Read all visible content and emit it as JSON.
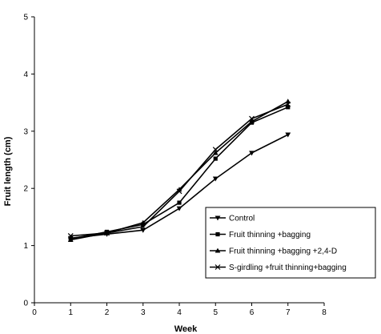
{
  "chart_data": {
    "type": "line",
    "title": "",
    "xlabel": "Week",
    "ylabel": "Fruit length (cm)",
    "xlim": [
      0,
      8
    ],
    "ylim": [
      0,
      5
    ],
    "x_ticks": [
      0,
      1,
      2,
      3,
      4,
      5,
      6,
      7,
      8
    ],
    "y_ticks": [
      0,
      1,
      2,
      3,
      4,
      5
    ],
    "grid": false,
    "legend_position": "bottom-right",
    "x": [
      1,
      2,
      3,
      4,
      5,
      6,
      7
    ],
    "series": [
      {
        "name": "Control",
        "marker": "triangle-down",
        "values": [
          1.13,
          1.2,
          1.27,
          1.65,
          2.17,
          2.62,
          2.94
        ]
      },
      {
        "name": "Fruit thinning +bagging",
        "marker": "square",
        "values": [
          1.12,
          1.24,
          1.37,
          1.75,
          2.52,
          3.15,
          3.42
        ]
      },
      {
        "name": "Fruit thinning +bagging +2,4-D",
        "marker": "triangle-up",
        "values": [
          1.1,
          1.22,
          1.4,
          1.98,
          2.62,
          3.17,
          3.52
        ]
      },
      {
        "name": "S-girdling +fruit thinning+bagging",
        "marker": "x",
        "values": [
          1.17,
          1.22,
          1.33,
          1.95,
          2.68,
          3.22,
          3.47
        ]
      }
    ]
  }
}
